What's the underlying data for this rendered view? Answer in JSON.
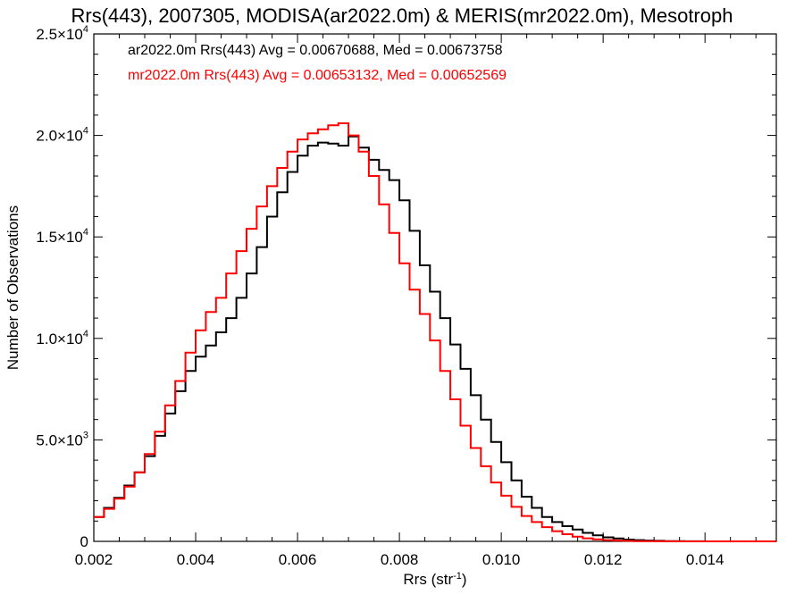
{
  "chart_data": {
    "type": "line",
    "title": "Rrs(443), 2007305, MODISA(ar2022.0m) & MERIS(mr2022.0m), Mesotroph",
    "xlabel": "Rrs (str",
    "xlabel_sup": "-1",
    "xlabel_close": ")",
    "ylabel": "Number of Observations",
    "xlim": [
      0.002,
      0.0154
    ],
    "ylim": [
      0,
      25000
    ],
    "x_ticks": [
      0.002,
      0.004,
      0.006,
      0.008,
      0.01,
      0.012,
      0.014
    ],
    "x_tick_labels": [
      "0.002",
      "0.004",
      "0.006",
      "0.008",
      "0.010",
      "0.012",
      "0.014"
    ],
    "y_ticks": [
      0,
      5000,
      10000,
      15000,
      20000,
      25000
    ],
    "y_tick_labels": [
      {
        "mant": "0",
        "exp": ""
      },
      {
        "mant": "5.0×10",
        "exp": "3"
      },
      {
        "mant": "1.0×10",
        "exp": "4"
      },
      {
        "mant": "1.5×10",
        "exp": "4"
      },
      {
        "mant": "2.0×10",
        "exp": "4"
      },
      {
        "mant": "2.5×10",
        "exp": "4"
      }
    ],
    "series": [
      {
        "name": "ar2022.0m Rrs(443) Avg = 0.00670688, Med = 0.00673758",
        "color": "#000000",
        "x": [
          0.002,
          0.0022,
          0.0024,
          0.0026,
          0.0028,
          0.003,
          0.0032,
          0.0034,
          0.0036,
          0.0038,
          0.004,
          0.0042,
          0.0044,
          0.0046,
          0.0048,
          0.005,
          0.0052,
          0.0054,
          0.0056,
          0.0058,
          0.006,
          0.0062,
          0.0064,
          0.0066,
          0.0068,
          0.007,
          0.0072,
          0.0074,
          0.0076,
          0.0078,
          0.008,
          0.0082,
          0.0084,
          0.0086,
          0.0088,
          0.009,
          0.0092,
          0.0094,
          0.0096,
          0.0098,
          0.01,
          0.0102,
          0.0104,
          0.0106,
          0.0108,
          0.011,
          0.0112,
          0.0114,
          0.0116,
          0.0118,
          0.012,
          0.0122,
          0.0124,
          0.0126,
          0.0128,
          0.013,
          0.0132,
          0.0134,
          0.0136,
          0.0138,
          0.014,
          0.0142,
          0.0144,
          0.0146,
          0.0148,
          0.015,
          0.0152,
          0.0154
        ],
        "y": [
          1200,
          1650,
          2150,
          2750,
          3400,
          4200,
          5200,
          6300,
          7400,
          8400,
          9100,
          9650,
          10300,
          11000,
          12000,
          13200,
          14500,
          16000,
          17200,
          18200,
          19000,
          19500,
          19650,
          19600,
          19500,
          19950,
          19400,
          18800,
          18300,
          17800,
          16800,
          15300,
          13600,
          12300,
          11000,
          9700,
          8500,
          7200,
          6000,
          4900,
          3900,
          3000,
          2200,
          1650,
          1200,
          950,
          750,
          580,
          420,
          300,
          200,
          140,
          90,
          60,
          40,
          25,
          15,
          10,
          5,
          3,
          2,
          1,
          1,
          0,
          0,
          0,
          0,
          0
        ]
      },
      {
        "name": "mr2022.0m Rrs(443) Avg = 0.00653132, Med = 0.00652569",
        "color": "#ff0000",
        "x": [
          0.002,
          0.0022,
          0.0024,
          0.0026,
          0.0028,
          0.003,
          0.0032,
          0.0034,
          0.0036,
          0.0038,
          0.004,
          0.0042,
          0.0044,
          0.0046,
          0.0048,
          0.005,
          0.0052,
          0.0054,
          0.0056,
          0.0058,
          0.006,
          0.0062,
          0.0064,
          0.0066,
          0.0068,
          0.007,
          0.0072,
          0.0074,
          0.0076,
          0.0078,
          0.008,
          0.0082,
          0.0084,
          0.0086,
          0.0088,
          0.009,
          0.0092,
          0.0094,
          0.0096,
          0.0098,
          0.01,
          0.0102,
          0.0104,
          0.0106,
          0.0108,
          0.011,
          0.0112,
          0.0114,
          0.0116,
          0.0118,
          0.012,
          0.0122,
          0.0124,
          0.0126,
          0.0128,
          0.013,
          0.0132,
          0.0134,
          0.0136,
          0.0138,
          0.014,
          0.0142,
          0.0144,
          0.0146,
          0.0148,
          0.015,
          0.0152,
          0.0154
        ],
        "y": [
          1200,
          1600,
          2100,
          2700,
          3400,
          4300,
          5400,
          6700,
          7900,
          9300,
          10400,
          11300,
          12000,
          13200,
          14300,
          15400,
          16500,
          17500,
          18400,
          19200,
          19800,
          20100,
          20300,
          20500,
          20600,
          20000,
          19200,
          18000,
          16600,
          15200,
          13700,
          12400,
          11200,
          9900,
          8400,
          7000,
          5700,
          4600,
          3700,
          2900,
          2250,
          1700,
          1250,
          950,
          700,
          500,
          350,
          230,
          150,
          100,
          60,
          40,
          25,
          15,
          10,
          5,
          3,
          2,
          1,
          1,
          0,
          0,
          0,
          0,
          0,
          0,
          0,
          0
        ]
      }
    ],
    "grid": false,
    "legend_position": "top-left"
  }
}
